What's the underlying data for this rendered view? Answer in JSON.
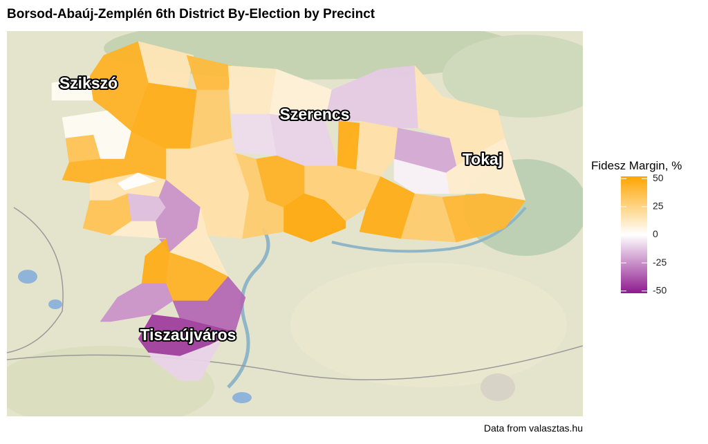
{
  "title": "Borsod-Abaúj-Zemplén 6th District By-Election by Precinct",
  "cities": [
    "Szikszó",
    "Szerencs",
    "Tokaj",
    "Tiszaújváros"
  ],
  "precincts": [
    2,
    45,
    15,
    40,
    48,
    30,
    12,
    8,
    -12,
    15,
    -20,
    -3,
    -8,
    -10,
    18,
    48,
    10,
    48,
    30,
    42,
    28,
    45,
    50,
    30,
    18,
    2,
    35,
    45,
    45,
    15,
    0,
    35,
    -15,
    -25,
    10,
    12,
    48,
    45,
    -25,
    -35,
    -45,
    -10
  ],
  "legend": {
    "title": "Fidesz Margin, %",
    "ticks": [
      50,
      25,
      0,
      -25,
      -50
    ],
    "lim": [
      -52,
      52
    ],
    "colors": {
      "low": "#8e1a8e",
      "mid": "#ffffff",
      "high": "#ffa500"
    }
  },
  "caption": "Data from valasztas.hu"
}
